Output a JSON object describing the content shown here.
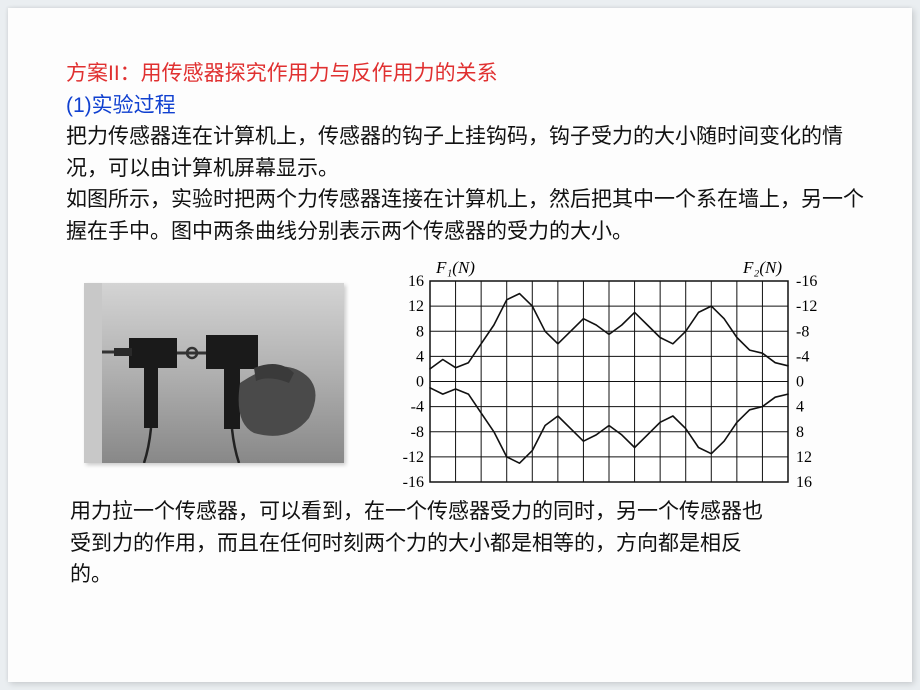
{
  "title_red": "方案II：用传感器探究作用力与反作用力的关系",
  "sub_blue": "(1)实验过程",
  "para1": "把力传感器连在计算机上，传感器的钩子上挂钩码，钩子受力的大小随时间变化的情况，可以由计算机屏幕显示。",
  "para2": "如图所示，实验时把两个力传感器连接在计算机上，然后把其中一个系在墙上，另一个握在手中。图中两条曲线分别表示两个传感器的受力的大小。",
  "conclusion": "用力拉一个传感器，可以看到，在一个传感器受力的同时，另一个传感器也受到力的作用，而且在任何时刻两个力的大小都是相等的，方向都是相反的。",
  "chart": {
    "left_axis_title": "F₁(N)",
    "right_axis_title": "F₂(N)",
    "left_ticks": [
      "16",
      "12",
      "8",
      "4",
      "0",
      "-4",
      "-8",
      "-12",
      "-16"
    ],
    "right_ticks": [
      "-16",
      "-12",
      "-8",
      "-4",
      "0",
      "4",
      "8",
      "12",
      "16"
    ],
    "grid_cols": 14,
    "grid_rows": 8,
    "grid_color": "#111111",
    "background": "#ffffff",
    "axis_fontsize": 17,
    "tick_fontsize": 16,
    "stroke_width": 1.6,
    "curve_color": "#111111",
    "top_curve": [
      [
        0,
        2
      ],
      [
        0.5,
        3.5
      ],
      [
        1,
        2.2
      ],
      [
        1.5,
        3
      ],
      [
        2,
        6
      ],
      [
        2.5,
        9
      ],
      [
        3,
        13
      ],
      [
        3.5,
        14
      ],
      [
        4,
        12
      ],
      [
        4.5,
        8
      ],
      [
        5,
        6
      ],
      [
        5.5,
        8
      ],
      [
        6,
        10
      ],
      [
        6.5,
        9
      ],
      [
        7,
        7.5
      ],
      [
        7.5,
        9
      ],
      [
        8,
        11
      ],
      [
        8.5,
        9
      ],
      [
        9,
        7
      ],
      [
        9.5,
        6
      ],
      [
        10,
        8
      ],
      [
        10.5,
        11
      ],
      [
        11,
        12
      ],
      [
        11.5,
        10
      ],
      [
        12,
        7
      ],
      [
        12.5,
        5
      ],
      [
        13,
        4.5
      ],
      [
        13.5,
        3
      ],
      [
        14,
        2.5
      ]
    ],
    "bottom_curve": [
      [
        0,
        -1
      ],
      [
        0.5,
        -2
      ],
      [
        1,
        -1.2
      ],
      [
        1.5,
        -2
      ],
      [
        2,
        -5
      ],
      [
        2.5,
        -8
      ],
      [
        3,
        -12
      ],
      [
        3.5,
        -13
      ],
      [
        4,
        -11
      ],
      [
        4.5,
        -7
      ],
      [
        5,
        -5.5
      ],
      [
        5.5,
        -7.5
      ],
      [
        6,
        -9.5
      ],
      [
        6.5,
        -8.5
      ],
      [
        7,
        -7
      ],
      [
        7.5,
        -8.5
      ],
      [
        8,
        -10.5
      ],
      [
        8.5,
        -8.5
      ],
      [
        9,
        -6.5
      ],
      [
        9.5,
        -5.5
      ],
      [
        10,
        -7.5
      ],
      [
        10.5,
        -10.5
      ],
      [
        11,
        -11.5
      ],
      [
        11.5,
        -9.5
      ],
      [
        12,
        -6.5
      ],
      [
        12.5,
        -4.5
      ],
      [
        13,
        -4
      ],
      [
        13.5,
        -2.5
      ],
      [
        14,
        -2
      ]
    ],
    "y_range": [
      -16,
      16
    ]
  }
}
